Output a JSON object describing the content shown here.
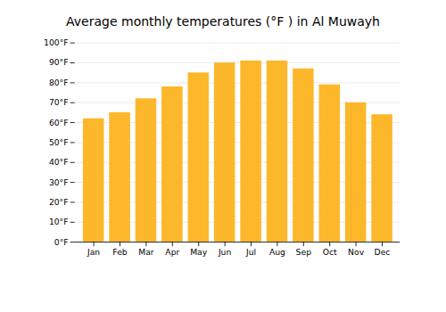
{
  "chart_data": {
    "type": "bar",
    "title": "Average monthly temperatures (°F ) in Al Muwayh",
    "categories": [
      "Jan",
      "Feb",
      "Mar",
      "Apr",
      "May",
      "Jun",
      "Jul",
      "Aug",
      "Sep",
      "Oct",
      "Nov",
      "Dec"
    ],
    "values": [
      62,
      65,
      72,
      78,
      85,
      90,
      91,
      91,
      87,
      79,
      70,
      64
    ],
    "color": "#FDB72A",
    "ylim": [
      0,
      100
    ],
    "yticks": [
      {
        "value": 0,
        "label": "0°F"
      },
      {
        "value": 10,
        "label": "10°F"
      },
      {
        "value": 20,
        "label": "20°F"
      },
      {
        "value": 30,
        "label": "30°F"
      },
      {
        "value": 40,
        "label": "40°F"
      },
      {
        "value": 50,
        "label": "50°F"
      },
      {
        "value": 60,
        "label": "60°F"
      },
      {
        "value": 70,
        "label": "70°F"
      },
      {
        "value": 80,
        "label": "80°F"
      },
      {
        "value": 90,
        "label": "90°F"
      },
      {
        "value": 100,
        "label": "100°F"
      }
    ],
    "grid": true
  }
}
